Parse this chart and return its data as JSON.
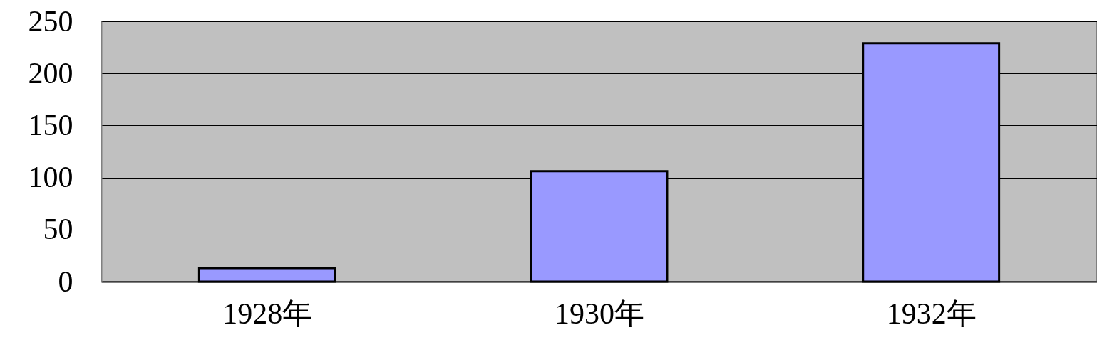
{
  "chart_data": {
    "type": "bar",
    "categories": [
      "1928年",
      "1930年",
      "1932年"
    ],
    "values": [
      13,
      106,
      229
    ],
    "color": "#9999ff",
    "ylim": [
      0,
      250
    ],
    "yticks": [
      0,
      50,
      100,
      150,
      200,
      250
    ],
    "grid": "y"
  }
}
